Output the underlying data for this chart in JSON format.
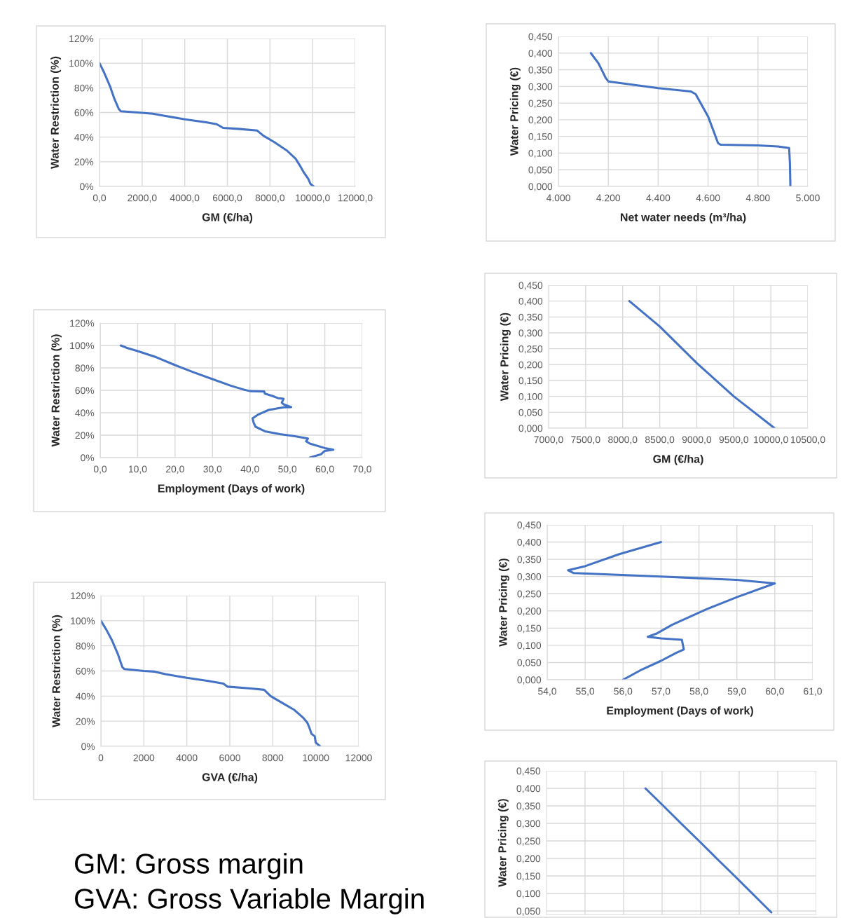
{
  "chart_data": [
    {
      "type": "line",
      "xlabel": "GM (€/ha)",
      "ylabel": "Water Restriction (%)",
      "color": "#4472c4",
      "grid": true,
      "x": [
        0,
        200,
        500,
        700,
        900,
        1000,
        2000,
        2500,
        3000,
        4000,
        5000,
        5500,
        5800,
        6500,
        7400,
        7700,
        8200,
        8800,
        9200,
        9400,
        9600,
        9800,
        9900,
        10050
      ],
      "values": [
        100,
        93,
        81,
        71,
        63,
        61,
        59.7,
        59,
        57.5,
        54.5,
        52,
        50.5,
        47.5,
        46.7,
        45.3,
        41,
        36,
        29,
        22.5,
        17,
        11,
        6,
        2,
        0
      ],
      "xlim": [
        0,
        12000
      ],
      "xticks": [
        {
          "value": 0,
          "label": "0,0"
        },
        {
          "value": 2000,
          "label": "2000,0"
        },
        {
          "value": 4000,
          "label": "4000,0"
        },
        {
          "value": 6000,
          "label": "6000,0"
        },
        {
          "value": 8000,
          "label": "8000,0"
        },
        {
          "value": 10000,
          "label": "10000,0"
        },
        {
          "value": 12000,
          "label": "12000,0"
        }
      ],
      "ylim": [
        0,
        120
      ],
      "yticks": [
        {
          "value": 0,
          "label": "0%"
        },
        {
          "value": 20,
          "label": "20%"
        },
        {
          "value": 40,
          "label": "40%"
        },
        {
          "value": 60,
          "label": "60%"
        },
        {
          "value": 80,
          "label": "80%"
        },
        {
          "value": 100,
          "label": "100%"
        },
        {
          "value": 120,
          "label": "120%"
        }
      ]
    },
    {
      "type": "line",
      "xlabel": "Net water needs (m³/ha)",
      "ylabel": "Water Pricing (€)",
      "color": "#4472c4",
      "grid": true,
      "x": [
        4130,
        4160,
        4170,
        4190,
        4200,
        4300,
        4400,
        4530,
        4550,
        4600,
        4620,
        4640,
        4650,
        4800,
        4880,
        4925,
        4928,
        4930
      ],
      "values": [
        0.4,
        0.37,
        0.355,
        0.325,
        0.315,
        0.305,
        0.295,
        0.285,
        0.277,
        0.21,
        0.17,
        0.13,
        0.125,
        0.123,
        0.12,
        0.115,
        0.07,
        0.0
      ],
      "xlim": [
        4000,
        5000
      ],
      "xticks": [
        {
          "value": 4000,
          "label": "4.000"
        },
        {
          "value": 4200,
          "label": "4.200"
        },
        {
          "value": 4400,
          "label": "4.400"
        },
        {
          "value": 4600,
          "label": "4.600"
        },
        {
          "value": 4800,
          "label": "4.800"
        },
        {
          "value": 5000,
          "label": "5.000"
        }
      ],
      "ylim": [
        0,
        0.45
      ],
      "yticks": [
        {
          "value": 0,
          "label": "0,000"
        },
        {
          "value": 0.05,
          "label": "0,050"
        },
        {
          "value": 0.1,
          "label": "0,100"
        },
        {
          "value": 0.15,
          "label": "0,150"
        },
        {
          "value": 0.2,
          "label": "0,200"
        },
        {
          "value": 0.25,
          "label": "0,250"
        },
        {
          "value": 0.3,
          "label": "0,300"
        },
        {
          "value": 0.35,
          "label": "0,350"
        },
        {
          "value": 0.4,
          "label": "0,400"
        },
        {
          "value": 0.45,
          "label": "0,450"
        }
      ]
    },
    {
      "type": "line",
      "xlabel": "GM (€/ha)",
      "ylabel": "Water Pricing (€)",
      "color": "#4472c4",
      "grid": true,
      "x": [
        8090,
        8500,
        9000,
        9500,
        10050
      ],
      "values": [
        0.4,
        0.32,
        0.205,
        0.1,
        0.0
      ],
      "xlim": [
        7000,
        10500
      ],
      "xticks": [
        {
          "value": 7000,
          "label": "7000,0"
        },
        {
          "value": 7500,
          "label": "7500,0"
        },
        {
          "value": 8000,
          "label": "8000,0"
        },
        {
          "value": 8500,
          "label": "8500,0"
        },
        {
          "value": 9000,
          "label": "9000,0"
        },
        {
          "value": 9500,
          "label": "9500,0"
        },
        {
          "value": 10000,
          "label": "10000,0"
        },
        {
          "value": 10500,
          "label": "10500,0"
        }
      ],
      "ylim": [
        0,
        0.45
      ],
      "yticks": [
        {
          "value": 0,
          "label": "0,000"
        },
        {
          "value": 0.05,
          "label": "0,050"
        },
        {
          "value": 0.1,
          "label": "0,100"
        },
        {
          "value": 0.15,
          "label": "0,150"
        },
        {
          "value": 0.2,
          "label": "0,200"
        },
        {
          "value": 0.25,
          "label": "0,250"
        },
        {
          "value": 0.3,
          "label": "0,300"
        },
        {
          "value": 0.35,
          "label": "0,350"
        },
        {
          "value": 0.4,
          "label": "0,400"
        },
        {
          "value": 0.45,
          "label": "0,450"
        }
      ]
    },
    {
      "type": "line",
      "xlabel": "Employment (Days of work)",
      "ylabel": "Water Restriction (%)",
      "color": "#4472c4",
      "grid": true,
      "x": [
        5.5,
        7,
        10,
        15,
        20,
        25,
        30,
        35,
        38,
        40,
        43.8,
        44,
        46,
        47.5,
        49,
        48.5,
        49,
        51,
        49,
        45,
        42,
        40.7,
        41,
        41.5,
        44,
        48,
        52,
        55.5,
        55,
        56,
        60,
        62.3,
        60,
        59,
        56
      ],
      "values": [
        100,
        98,
        95,
        89.5,
        82.5,
        76,
        70,
        64,
        61,
        59.3,
        59,
        57,
        55,
        53,
        52.5,
        49,
        47.5,
        45,
        44.8,
        42.5,
        38,
        35,
        31,
        27.5,
        23.5,
        21,
        19,
        17,
        14.5,
        12.5,
        8.5,
        7,
        6,
        3,
        0
      ],
      "xlim": [
        0,
        70
      ],
      "xticks": [
        {
          "value": 0,
          "label": "0,0"
        },
        {
          "value": 10,
          "label": "10,0"
        },
        {
          "value": 20,
          "label": "20,0"
        },
        {
          "value": 30,
          "label": "30,0"
        },
        {
          "value": 40,
          "label": "40,0"
        },
        {
          "value": 50,
          "label": "50,0"
        },
        {
          "value": 60,
          "label": "60,0"
        },
        {
          "value": 70,
          "label": "70,0"
        }
      ],
      "ylim": [
        0,
        120
      ],
      "yticks": [
        {
          "value": 0,
          "label": "0%"
        },
        {
          "value": 20,
          "label": "20%"
        },
        {
          "value": 40,
          "label": "40%"
        },
        {
          "value": 60,
          "label": "60%"
        },
        {
          "value": 80,
          "label": "80%"
        },
        {
          "value": 100,
          "label": "100%"
        },
        {
          "value": 120,
          "label": "120%"
        }
      ]
    },
    {
      "type": "line",
      "xlabel": "Employment (Days of work)",
      "ylabel": "Water Pricing (€)",
      "color": "#4472c4",
      "grid": true,
      "x": [
        57,
        55.9,
        55,
        54.55,
        54.7,
        57,
        58,
        59,
        60,
        59,
        58.2,
        57.3,
        56.9,
        56.65,
        57,
        57.55,
        57.6,
        57.4,
        57,
        56.5,
        56
      ],
      "values": [
        0.4,
        0.365,
        0.33,
        0.318,
        0.31,
        0.3,
        0.295,
        0.29,
        0.28,
        0.24,
        0.205,
        0.16,
        0.135,
        0.125,
        0.12,
        0.116,
        0.088,
        0.078,
        0.055,
        0.03,
        0.0
      ],
      "xlim": [
        54,
        61
      ],
      "xticks": [
        {
          "value": 54,
          "label": "54,0"
        },
        {
          "value": 55,
          "label": "55,0"
        },
        {
          "value": 56,
          "label": "56,0"
        },
        {
          "value": 57,
          "label": "57,0"
        },
        {
          "value": 58,
          "label": "58,0"
        },
        {
          "value": 59,
          "label": "59,0"
        },
        {
          "value": 60,
          "label": "60,0"
        },
        {
          "value": 61,
          "label": "61,0"
        }
      ],
      "ylim": [
        0,
        0.45
      ],
      "yticks": [
        {
          "value": 0,
          "label": "0,000"
        },
        {
          "value": 0.05,
          "label": "0,050"
        },
        {
          "value": 0.1,
          "label": "0,100"
        },
        {
          "value": 0.15,
          "label": "0,150"
        },
        {
          "value": 0.2,
          "label": "0,200"
        },
        {
          "value": 0.25,
          "label": "0,250"
        },
        {
          "value": 0.3,
          "label": "0,300"
        },
        {
          "value": 0.35,
          "label": "0,350"
        },
        {
          "value": 0.4,
          "label": "0,400"
        },
        {
          "value": 0.45,
          "label": "0,450"
        }
      ]
    },
    {
      "type": "line",
      "xlabel": "GVA (€/ha)",
      "ylabel": "Water Restriction (%)",
      "color": "#4472c4",
      "grid": true,
      "x": [
        0,
        250,
        500,
        800,
        1000,
        1100,
        2000,
        2500,
        3000,
        4000,
        5000,
        5700,
        5900,
        7000,
        7600,
        7900,
        8500,
        9000,
        9400,
        9600,
        9700,
        9800,
        9950,
        10000,
        10200
      ],
      "values": [
        100,
        93,
        85,
        73,
        63,
        61.5,
        60,
        59.5,
        57.5,
        54.5,
        52,
        50,
        47.5,
        46,
        45,
        40,
        34,
        29,
        23,
        19,
        15,
        10,
        8,
        3,
        0
      ],
      "xlim": [
        0,
        12000
      ],
      "xticks": [
        0,
        2000,
        4000,
        6000,
        8000,
        10000,
        12000
      ],
      "ylim": [
        0,
        120
      ],
      "yticks": [
        {
          "value": 0,
          "label": "0%"
        },
        {
          "value": 20,
          "label": "20%"
        },
        {
          "value": 40,
          "label": "40%"
        },
        {
          "value": 60,
          "label": "60%"
        },
        {
          "value": 80,
          "label": "80%"
        },
        {
          "value": 100,
          "label": "100%"
        },
        {
          "value": 120,
          "label": "120%"
        }
      ]
    },
    {
      "type": "line",
      "ylabel": "Water Pricing (€)",
      "color": "#4472c4",
      "grid": true,
      "tick_labels": "y",
      "categories": [
        null,
        null,
        null,
        null,
        null,
        null,
        null,
        null,
        null,
        null,
        null,
        null,
        null,
        null,
        null
      ],
      "values": [
        null,
        null,
        null,
        null,
        null,
        0.4,
        0.35,
        0.299,
        0.249,
        0.198,
        0.148,
        0.097,
        0.046,
        null,
        null
      ],
      "ylim": [
        0.04,
        0.45
      ],
      "yticks": [
        {
          "value": 0.05,
          "label": "0,050"
        },
        {
          "value": 0.1,
          "label": "0,100"
        },
        {
          "value": 0.15,
          "label": "0,150"
        },
        {
          "value": 0.2,
          "label": "0,200"
        },
        {
          "value": 0.25,
          "label": "0,250"
        },
        {
          "value": 0.3,
          "label": "0,300"
        },
        {
          "value": 0.35,
          "label": "0,350"
        },
        {
          "value": 0.4,
          "label": "0,400"
        },
        {
          "value": 0.45,
          "label": "0,450"
        }
      ]
    },
    {
      "type": "other",
      "annotations": [
        "GM: Gross margin",
        "GVA: Gross Variable Margin"
      ]
    }
  ]
}
